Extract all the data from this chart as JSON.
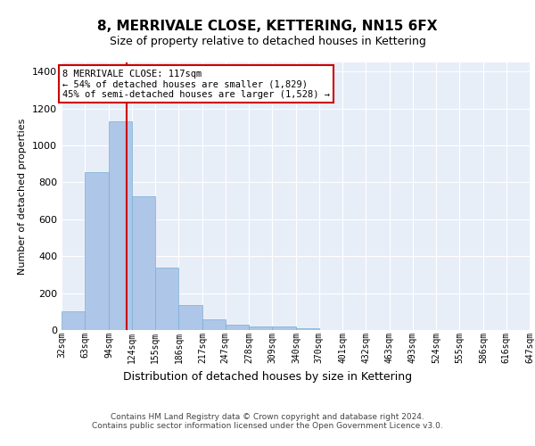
{
  "title": "8, MERRIVALE CLOSE, KETTERING, NN15 6FX",
  "subtitle": "Size of property relative to detached houses in Kettering",
  "xlabel": "Distribution of detached houses by size in Kettering",
  "ylabel": "Number of detached properties",
  "bar_color": "#aec6e8",
  "bar_edge_color": "#7aafd4",
  "background_color": "#e8eef8",
  "grid_color": "#ffffff",
  "vline_x": 117,
  "vline_color": "#cc0000",
  "annotation_text": "8 MERRIVALE CLOSE: 117sqm\n← 54% of detached houses are smaller (1,829)\n45% of semi-detached houses are larger (1,528) →",
  "footer": "Contains HM Land Registry data © Crown copyright and database right 2024.\nContains public sector information licensed under the Open Government Licence v3.0.",
  "bin_edges": [
    32,
    63,
    94,
    124,
    155,
    186,
    217,
    247,
    278,
    309,
    340,
    370,
    401,
    432,
    463,
    493,
    524,
    555,
    586,
    616,
    647
  ],
  "bar_heights": [
    100,
    855,
    1130,
    725,
    340,
    135,
    60,
    30,
    20,
    18,
    12,
    0,
    0,
    0,
    0,
    0,
    0,
    0,
    0,
    0
  ],
  "ylim": [
    0,
    1450
  ],
  "yticks": [
    0,
    200,
    400,
    600,
    800,
    1000,
    1200,
    1400
  ],
  "title_fontsize": 11,
  "subtitle_fontsize": 9,
  "ylabel_fontsize": 8,
  "xlabel_fontsize": 9,
  "tick_fontsize": 7,
  "footer_fontsize": 6.5
}
